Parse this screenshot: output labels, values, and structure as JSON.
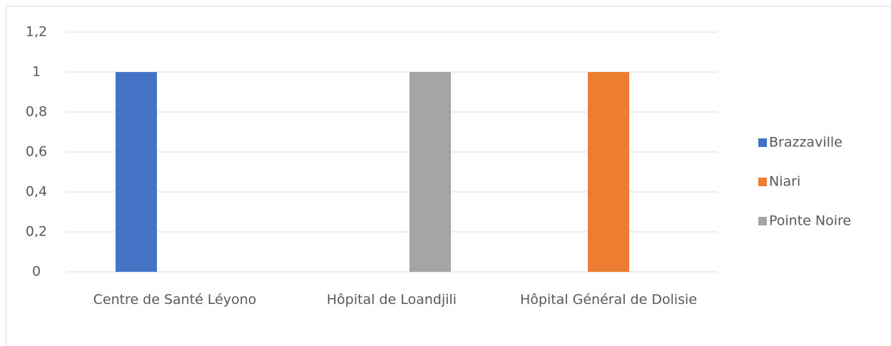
{
  "chart_data": {
    "type": "bar",
    "categories": [
      "Centre de Santé Léyono",
      "Hôpital de Loandjili",
      "Hôpital Général de Dolisie"
    ],
    "series": [
      {
        "name": "Brazzaville",
        "color": "#4472c4",
        "values": [
          1,
          null,
          null
        ]
      },
      {
        "name": "Niari",
        "color": "#ed7d31",
        "values": [
          null,
          null,
          1
        ]
      },
      {
        "name": "Pointe Noire",
        "color": "#a5a5a5",
        "values": [
          null,
          1,
          null
        ]
      }
    ],
    "ylim": [
      0,
      1.2
    ],
    "yticks": [
      0,
      {
        "value": 0.2,
        "label": "0,2"
      },
      {
        "value": 0.4,
        "label": "0,4"
      },
      {
        "value": 0.6,
        "label": "0,6"
      },
      {
        "value": 0.8,
        "label": "0,8"
      },
      1,
      {
        "value": 1.2,
        "label": "1,2"
      }
    ],
    "grid": true,
    "legend": "right"
  }
}
